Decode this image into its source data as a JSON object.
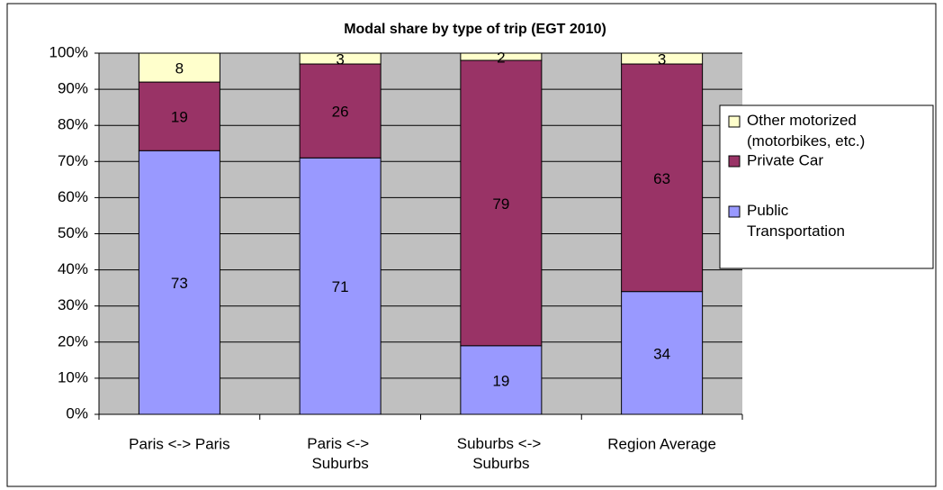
{
  "chart_data": {
    "type": "stacked_bar",
    "title": "Modal share by type of trip (EGT 2010)",
    "categories": [
      "Paris <-> Paris",
      "Paris <-> Suburbs",
      "Suburbs <-> Suburbs",
      "Region Average"
    ],
    "series": [
      {
        "name": "Public Transportation",
        "color": "#9999ff",
        "values": [
          73,
          71,
          19,
          34
        ]
      },
      {
        "name": "Private Car",
        "color": "#993366",
        "values": [
          19,
          26,
          79,
          63
        ]
      },
      {
        "name": "Other motorized (motorbikes, etc.)",
        "color": "#ffffcc",
        "values": [
          8,
          3,
          2,
          3
        ]
      }
    ],
    "ylim": [
      0,
      100
    ],
    "yticks": [
      {
        "value": 0,
        "label": "0%"
      },
      {
        "value": 10,
        "label": "10%"
      },
      {
        "value": 20,
        "label": "20%"
      },
      {
        "value": 30,
        "label": "30%"
      },
      {
        "value": 40,
        "label": "40%"
      },
      {
        "value": 50,
        "label": "50%"
      },
      {
        "value": 60,
        "label": "60%"
      },
      {
        "value": 70,
        "label": "70%"
      },
      {
        "value": 80,
        "label": "80%"
      },
      {
        "value": 90,
        "label": "90%"
      },
      {
        "value": 100,
        "label": "100%"
      }
    ],
    "grid": true,
    "legend": "right"
  }
}
